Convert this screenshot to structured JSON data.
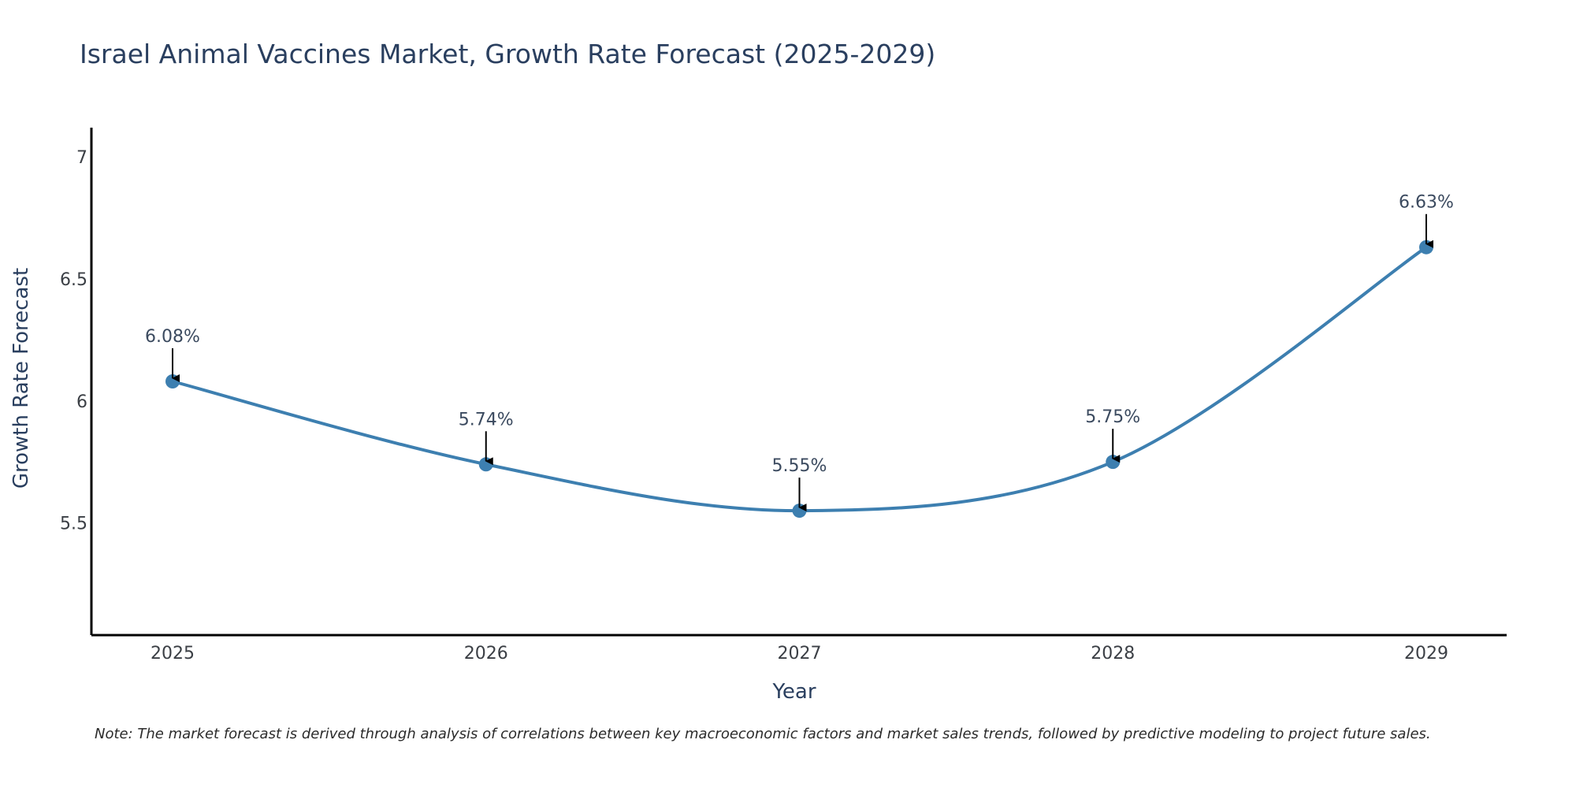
{
  "chart_data": {
    "type": "line",
    "title": "Israel Animal Vaccines Market, Growth Rate Forecast (2025-2029)",
    "xlabel": "Year",
    "ylabel": "Growth Rate Forecast",
    "categories": [
      "2025",
      "2026",
      "2027",
      "2028",
      "2029"
    ],
    "series": [
      {
        "name": "Growth Rate Forecast",
        "values": [
          6.08,
          5.74,
          5.55,
          5.75,
          6.63
        ],
        "labels": [
          "6.08%",
          "5.74%",
          "5.55%",
          "5.75%",
          "6.63%"
        ]
      }
    ],
    "yticks": [
      "5.5",
      "6",
      "6.5",
      "7"
    ],
    "ylim": [
      5.04,
      7.12
    ],
    "grid": false,
    "line_color": "#3d7fb0",
    "axis_color": "#000000",
    "note": "Note: The market forecast is derived through analysis of correlations between key macroeconomic factors and market sales trends, followed by predictive modeling to project future sales."
  }
}
